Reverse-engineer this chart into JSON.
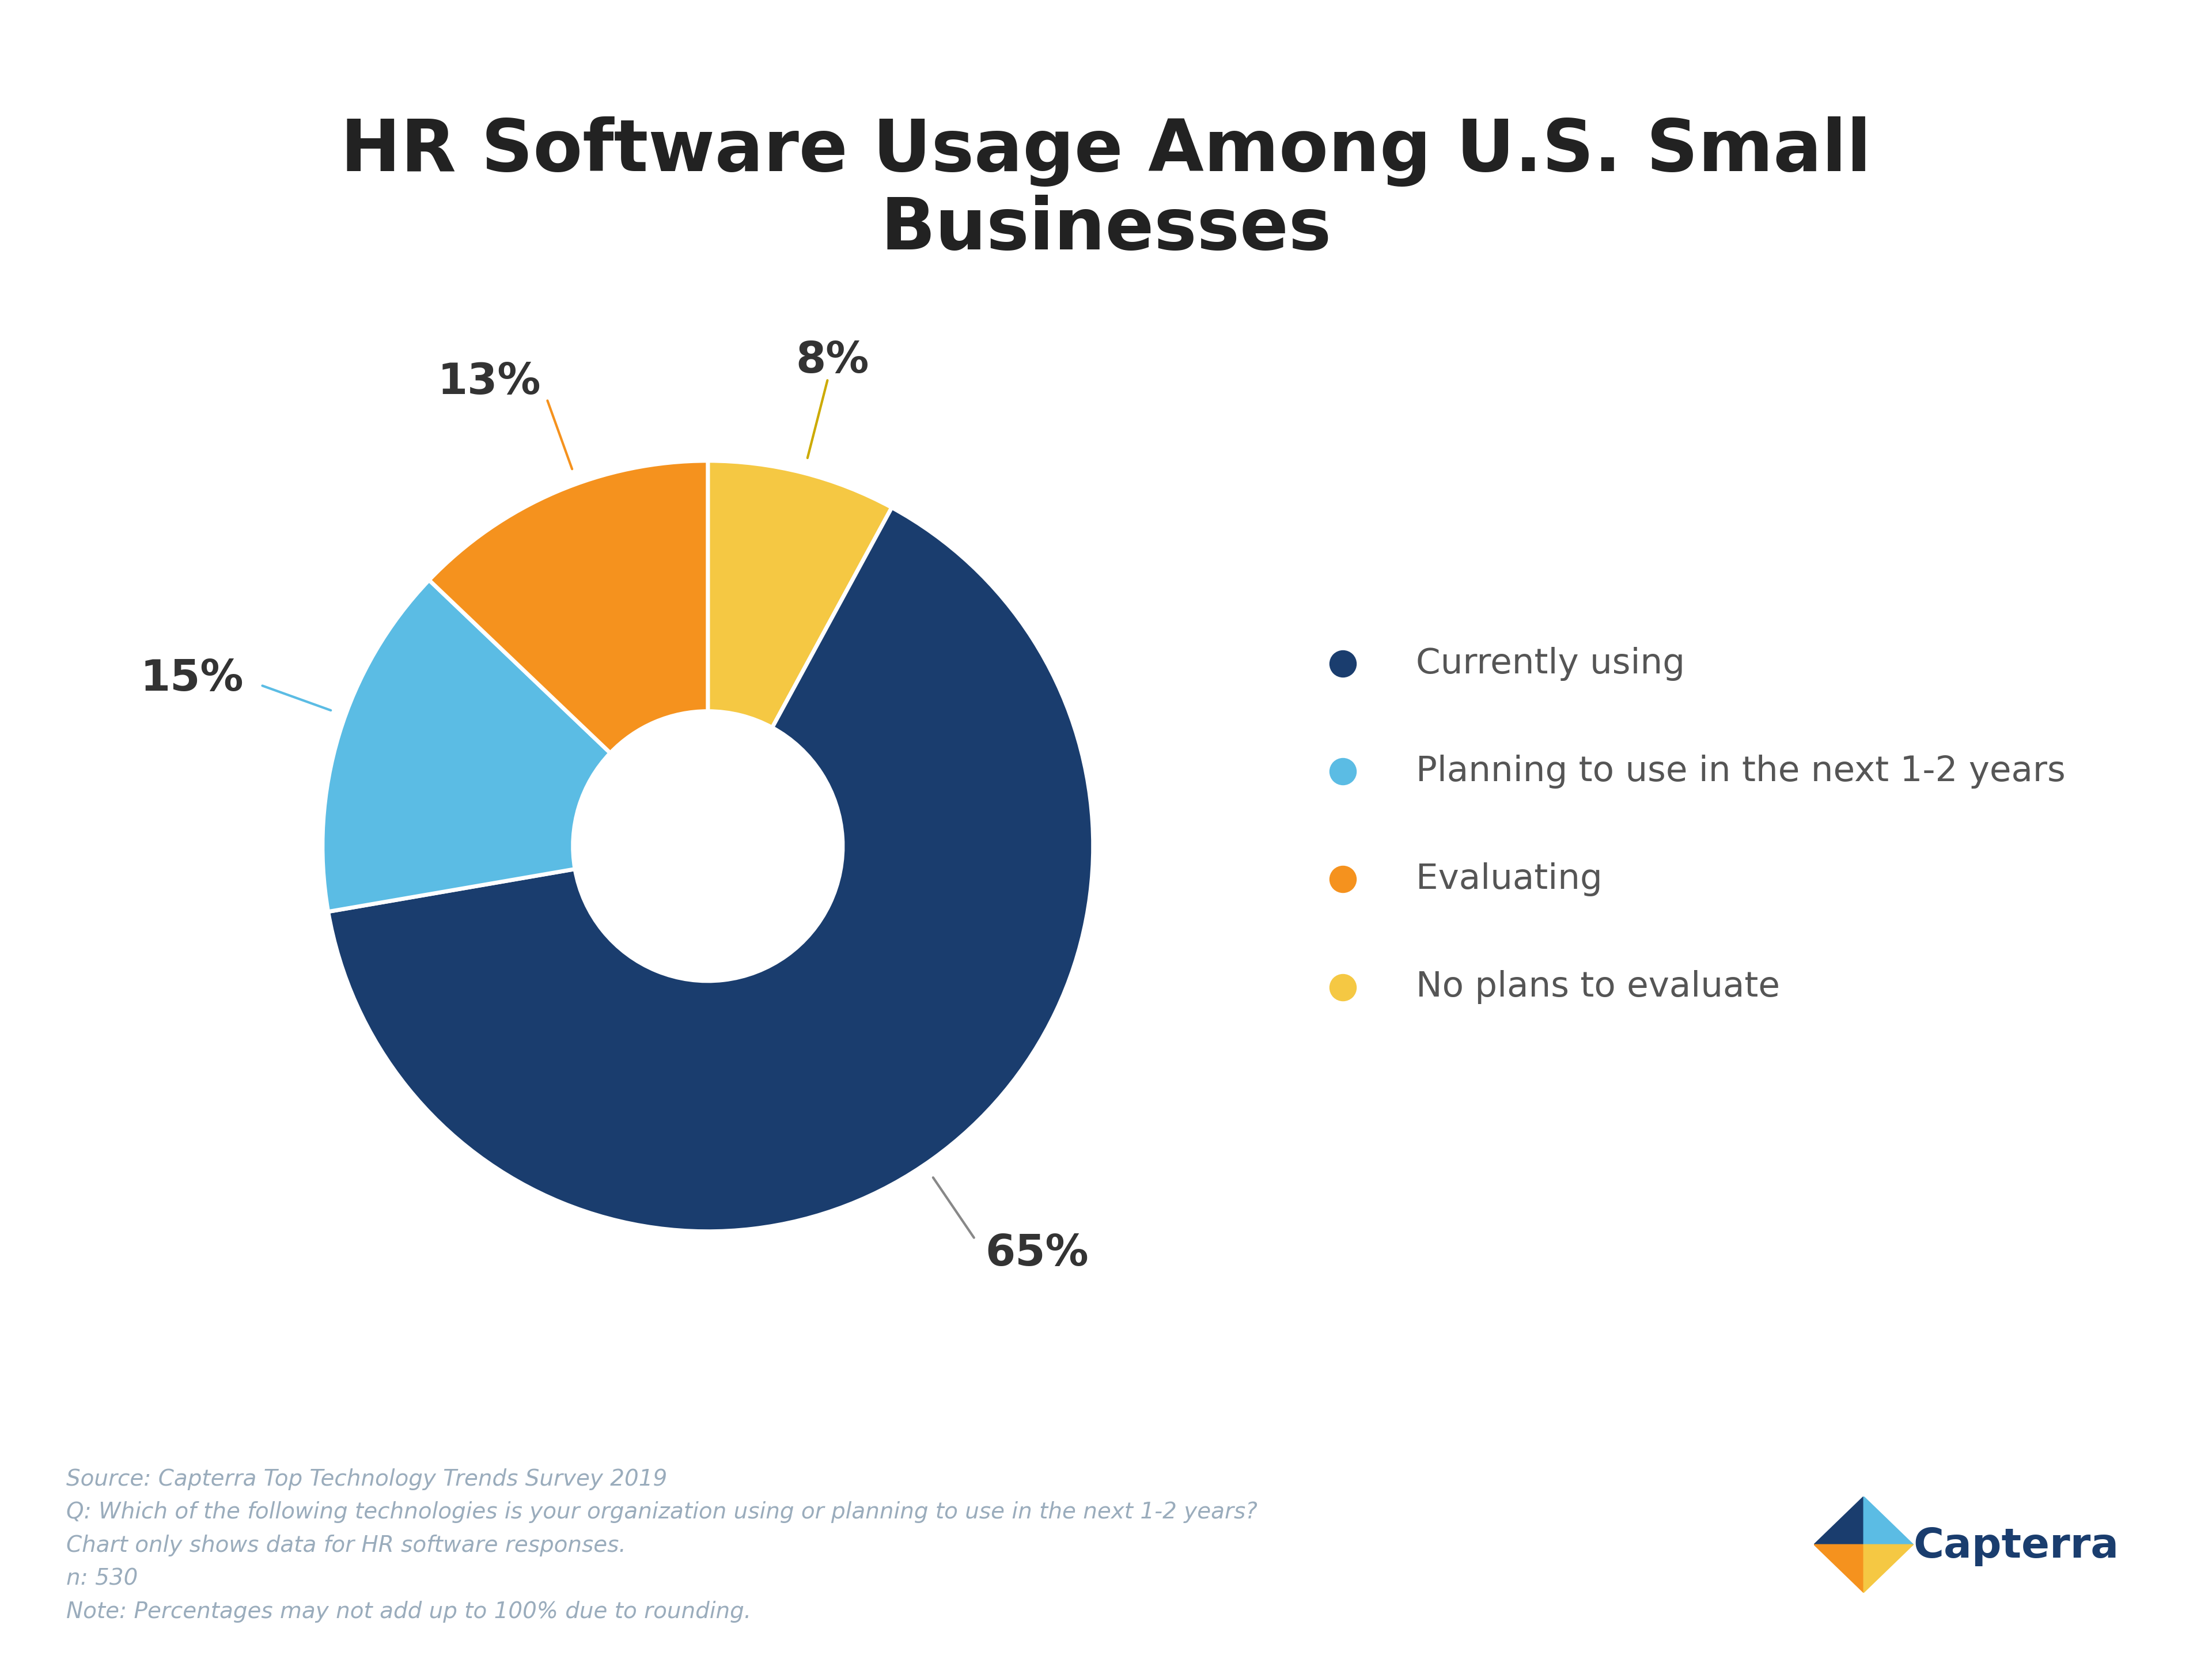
{
  "title": "HR Software Usage Among U.S. Small\nBusinesses",
  "slices": [
    65,
    15,
    13,
    8
  ],
  "labels": [
    "Currently using",
    "Planning to use in the next 1-2 years",
    "Evaluating",
    "No plans to evaluate"
  ],
  "colors": [
    "#1a3d6e",
    "#5bbce4",
    "#f5921e",
    "#f5c843"
  ],
  "title_fontsize": 90,
  "legend_fontsize": 44,
  "pct_fontsize": 54,
  "footnote_lines": [
    "Source: Capterra Top Technology Trends Survey 2019",
    "Q: Which of the following technologies is your organization using or planning to use in the next 1-2 years?",
    "Chart only shows data for HR software responses.",
    "n: 530",
    "Note: Percentages may not add up to 100% due to rounding."
  ],
  "footnote_fontsize": 28,
  "footnote_color": "#9aacbc",
  "bg_color": "#ffffff",
  "wedge_order": [
    3,
    0,
    1,
    2
  ],
  "ordered_slices": [
    8,
    65,
    15,
    13
  ],
  "ordered_colors": [
    "#f5c843",
    "#1a3d6e",
    "#5bbce4",
    "#f5921e"
  ]
}
